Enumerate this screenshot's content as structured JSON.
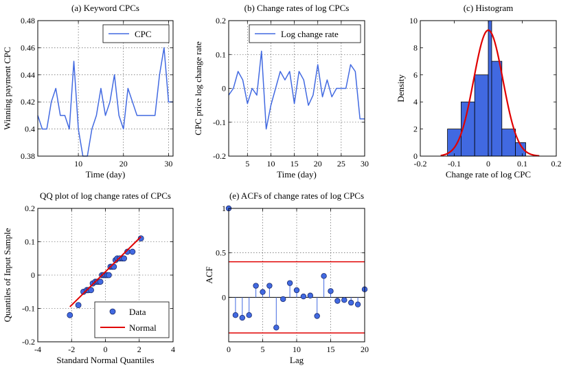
{
  "chart_data": [
    {
      "id": "a",
      "type": "line",
      "title": "(a) Keyword CPCs",
      "xlabel": "Time (day)",
      "ylabel": "Winning payment CPC",
      "xlim": [
        1,
        31
      ],
      "ylim": [
        0.38,
        0.48
      ],
      "xticks": [
        10,
        20,
        30
      ],
      "yticks": [
        0.38,
        0.4,
        0.42,
        0.44,
        0.46,
        0.48
      ],
      "ytick_labels": [
        "0.38",
        "0.4",
        "0.42",
        "0.44",
        "0.46",
        "0.48"
      ],
      "grid": true,
      "legend": {
        "position": "top-right",
        "entries": [
          "CPC"
        ]
      },
      "series": [
        {
          "name": "CPC",
          "color": "#4169e1",
          "x": [
            1,
            2,
            3,
            4,
            5,
            6,
            7,
            8,
            9,
            10,
            11,
            12,
            13,
            14,
            15,
            16,
            17,
            18,
            19,
            20,
            21,
            22,
            23,
            24,
            25,
            26,
            27,
            28,
            29,
            30,
            31
          ],
          "y": [
            0.41,
            0.4,
            0.4,
            0.42,
            0.43,
            0.41,
            0.41,
            0.4,
            0.45,
            0.4,
            0.38,
            0.38,
            0.4,
            0.41,
            0.43,
            0.41,
            0.42,
            0.44,
            0.41,
            0.4,
            0.43,
            0.42,
            0.41,
            0.41,
            0.41,
            0.41,
            0.41,
            0.44,
            0.46,
            0.42,
            0.42
          ]
        }
      ]
    },
    {
      "id": "b",
      "type": "line",
      "title": "(b) Change rates of log CPCs",
      "xlabel": "Time (day)",
      "ylabel": "CPC price log change rate",
      "xlim": [
        1,
        30
      ],
      "ylim": [
        -0.2,
        0.2
      ],
      "xticks": [
        5,
        10,
        15,
        20,
        25,
        30
      ],
      "yticks": [
        -0.2,
        -0.1,
        0,
        0.1,
        0.2
      ],
      "ytick_labels": [
        "-0.2",
        "-0.1",
        "0",
        "0.1",
        "0.2"
      ],
      "grid": true,
      "legend": {
        "position": "top-right",
        "entries": [
          "Log change rate"
        ]
      },
      "series": [
        {
          "name": "Log change rate",
          "color": "#4169e1",
          "x": [
            1,
            2,
            3,
            4,
            5,
            6,
            7,
            8,
            9,
            10,
            11,
            12,
            13,
            14,
            15,
            16,
            17,
            18,
            19,
            20,
            21,
            22,
            23,
            24,
            25,
            26,
            27,
            28,
            29,
            30
          ],
          "y": [
            -0.02,
            0,
            0.05,
            0.025,
            -0.045,
            0,
            -0.02,
            0.11,
            -0.12,
            -0.05,
            0,
            0.05,
            0.025,
            0.05,
            -0.045,
            0.05,
            0.025,
            -0.05,
            -0.02,
            0.07,
            -0.025,
            0.025,
            -0.025,
            0,
            0,
            0,
            0.07,
            0.05,
            -0.09,
            -0.09
          ]
        }
      ]
    },
    {
      "id": "c",
      "type": "bar",
      "title": "(c) Histogram",
      "xlabel": "Change rate of log CPC",
      "ylabel": "Density",
      "xlim": [
        -0.2,
        0.2
      ],
      "ylim": [
        0,
        10
      ],
      "xticks": [
        -0.2,
        -0.1,
        0,
        0.1,
        0.2
      ],
      "xtick_labels": [
        "-0.2",
        "-0.1",
        "0",
        "0.1",
        "0.2"
      ],
      "yticks": [
        0,
        2,
        4,
        6,
        8,
        10
      ],
      "grid": false,
      "bars": [
        {
          "left": -0.12,
          "right": -0.08,
          "value": 2
        },
        {
          "left": -0.08,
          "right": -0.04,
          "value": 4
        },
        {
          "left": -0.04,
          "right": 0.0,
          "value": 6
        },
        {
          "left": 0.0,
          "right": 0.01,
          "value": 10
        },
        {
          "left": 0.01,
          "right": 0.04,
          "value": 7
        },
        {
          "left": 0.04,
          "right": 0.08,
          "value": 2
        },
        {
          "left": 0.08,
          "right": 0.11,
          "value": 1
        }
      ],
      "fit_curve": {
        "name": "Normal fit",
        "color": "#e00000",
        "mean": 0.0,
        "sd": 0.043,
        "peak": 9.3,
        "range": [
          -0.14,
          0.15
        ]
      },
      "bar_color": "#4169e1"
    },
    {
      "id": "d",
      "type": "scatter",
      "title": "QQ plot of log change rates of CPCs",
      "xlabel": "Standard Normal Quantiles",
      "ylabel": "Quantiles of Input Sample",
      "xlim": [
        -4,
        4
      ],
      "ylim": [
        -0.2,
        0.2
      ],
      "xticks": [
        -4,
        -2,
        0,
        2,
        4
      ],
      "xtick_labels": [
        "-4",
        "-2",
        "0",
        "2",
        "4"
      ],
      "yticks": [
        -0.2,
        -0.1,
        0,
        0.1,
        0.2
      ],
      "ytick_labels": [
        "-0.2",
        "-0.1",
        "0",
        "0.1",
        "0.2"
      ],
      "grid": true,
      "legend": {
        "position": "bottom-right",
        "entries": [
          "Data",
          "Normal"
        ]
      },
      "series": [
        {
          "name": "Data",
          "color": "#4169e1",
          "x": [
            -2.1,
            -1.6,
            -1.3,
            -1.1,
            -1.0,
            -0.85,
            -0.75,
            -0.6,
            -0.5,
            -0.4,
            -0.3,
            -0.2,
            -0.1,
            0,
            0.1,
            0.2,
            0.3,
            0.4,
            0.5,
            0.6,
            0.7,
            0.85,
            1.0,
            1.1,
            1.3,
            1.6,
            2.1
          ],
          "y": [
            -0.12,
            -0.09,
            -0.05,
            -0.045,
            -0.045,
            -0.045,
            -0.025,
            -0.02,
            -0.02,
            -0.02,
            -0.02,
            0,
            0,
            0,
            0,
            0,
            0.025,
            0.025,
            0.025,
            0.045,
            0.05,
            0.05,
            0.05,
            0.05,
            0.07,
            0.07,
            0.11
          ]
        },
        {
          "name": "Normal",
          "color": "#e00000",
          "x": [
            -2.1,
            2.1
          ],
          "y": [
            -0.095,
            0.115
          ]
        }
      ]
    },
    {
      "id": "e",
      "type": "stem",
      "title": "(e) ACFs of change rates of log CPCs",
      "xlabel": "Lag",
      "ylabel": "ACF",
      "xlim": [
        0,
        20
      ],
      "ylim": [
        -0.5,
        1.0
      ],
      "xticks": [
        0,
        5,
        10,
        15,
        20
      ],
      "yticks": [
        0,
        0.5,
        1
      ],
      "ytick_labels": [
        "0",
        "0.5",
        "1"
      ],
      "grid": true,
      "bounds": [
        0.4,
        -0.4
      ],
      "bounds_color": "#e00000",
      "series": [
        {
          "name": "ACF",
          "color": "#4169e1",
          "x": [
            0,
            1,
            2,
            3,
            4,
            5,
            6,
            7,
            8,
            9,
            10,
            11,
            12,
            13,
            14,
            15,
            16,
            17,
            18,
            19,
            20
          ],
          "y": [
            1.0,
            -0.2,
            -0.23,
            -0.2,
            0.13,
            0.06,
            0.13,
            -0.34,
            -0.02,
            0.16,
            0.08,
            0.01,
            0.02,
            -0.21,
            0.24,
            0.07,
            -0.04,
            -0.03,
            -0.06,
            -0.08,
            0.09
          ]
        }
      ]
    }
  ]
}
